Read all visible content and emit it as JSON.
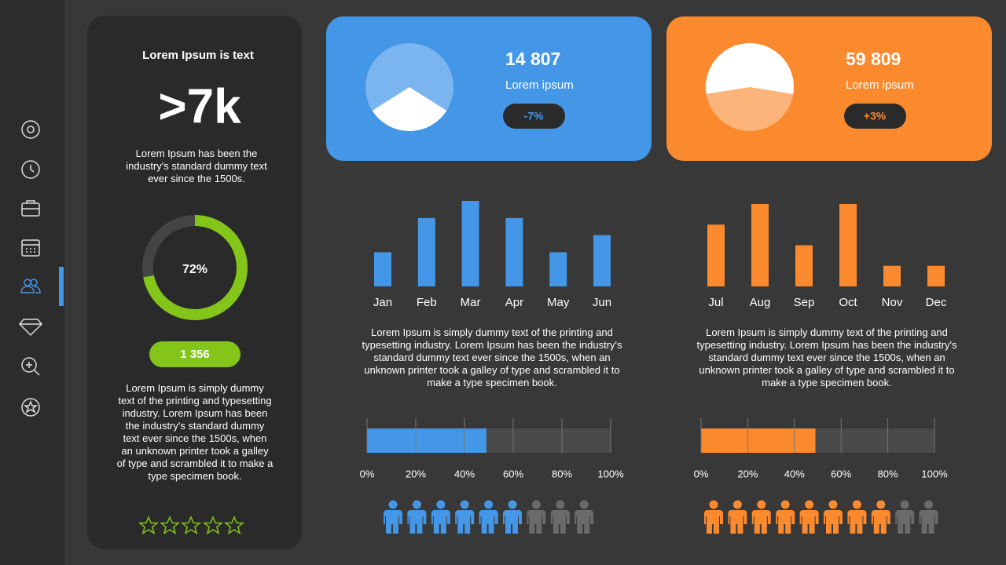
{
  "left_panel": {
    "title": "Lorem Ipsum is text",
    "headline": ">7k",
    "description": "Lorem Ipsum has been the industry's standard dummy text ever since the 1500s.",
    "donut": {
      "value": 72,
      "label": "72%",
      "color": "#84c51a"
    },
    "badge": "1 356",
    "body": "Lorem Ipsum is simply dummy text of the printing and typesetting industry. Lorem Ipsum has been the industry's standard dummy text ever since the 1500s, when an unknown printer took a galley of type and scrambled it to make a type specimen book."
  },
  "cards": [
    {
      "value": "14 807",
      "caption": "Lorem ipsum",
      "change": "-7%",
      "color": "#4496e6",
      "share": 32
    },
    {
      "value": "59 809",
      "caption": "Lorem ipsum",
      "change": "+3%",
      "color": "#fb8a2e",
      "share": 55
    }
  ],
  "panels": [
    {
      "text": "Lorem Ipsum is simply dummy text of the printing and typesetting industry. Lorem Ipsum has been the industry's standard dummy text ever since the 1500s, when an unknown printer took a galley of type and scrambled it to make a type specimen book.",
      "people": {
        "filled": 6,
        "total": 9
      }
    },
    {
      "text": "Lorem Ipsum is simply dummy text of the printing and typesetting industry. Lorem Ipsum has been the industry's standard dummy text ever since the 1500s, when an unknown printer took a galley of type and scrambled it to make a type specimen book.",
      "people": {
        "filled": 8,
        "total": 10
      }
    }
  ],
  "chart_data": [
    {
      "type": "bar",
      "categories": [
        "Jan",
        "Feb",
        "Mar",
        "Apr",
        "May",
        "Jun"
      ],
      "values": [
        2,
        4,
        5,
        4,
        2,
        3
      ],
      "color": "#4496e6",
      "ylim": [
        0,
        5
      ]
    },
    {
      "type": "bar",
      "categories": [
        "Jul",
        "Aug",
        "Sep",
        "Oct",
        "Nov",
        "Dec"
      ],
      "values": [
        3,
        4,
        2,
        4,
        1,
        1
      ],
      "color": "#fb8a2e",
      "ylim": [
        0,
        4
      ]
    },
    {
      "type": "progress",
      "values": [
        49
      ],
      "color": "#4496e6",
      "xlim": [
        0,
        100
      ],
      "xticks": [
        {
          "value": 0,
          "label": "0%"
        },
        {
          "value": 20,
          "label": "20%"
        },
        {
          "value": 40,
          "label": "40%"
        },
        {
          "value": 60,
          "label": "60%"
        },
        {
          "value": 80,
          "label": "80%"
        },
        {
          "value": 100,
          "label": "100%"
        }
      ]
    },
    {
      "type": "progress",
      "values": [
        49
      ],
      "color": "#fb8a2e",
      "xlim": [
        0,
        100
      ],
      "xticks": [
        {
          "value": 0,
          "label": "0%"
        },
        {
          "value": 20,
          "label": "20%"
        },
        {
          "value": 40,
          "label": "40%"
        },
        {
          "value": 60,
          "label": "60%"
        },
        {
          "value": 80,
          "label": "80%"
        },
        {
          "value": 100,
          "label": "100%"
        }
      ]
    }
  ]
}
